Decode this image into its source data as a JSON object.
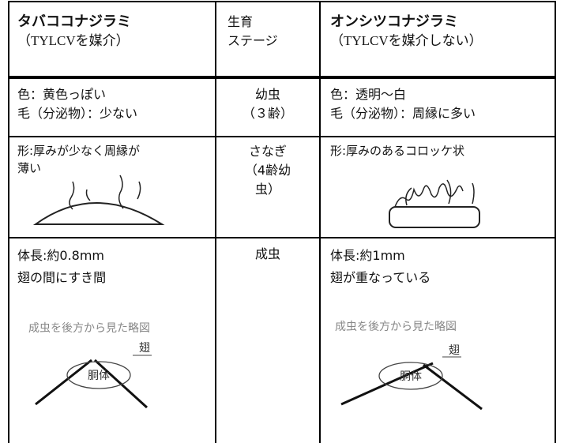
{
  "header": {
    "left": {
      "title": "タバココナジラミ",
      "subtitle": "（TYLCVを媒介）"
    },
    "stage": [
      "生育",
      "ステージ"
    ],
    "right": {
      "title": "オンシツコナジラミ",
      "subtitle": "（TYLCVを媒介しない）"
    }
  },
  "rows": [
    {
      "left": [
        "色：黄色っぽい",
        "毛（分泌物）：少ない"
      ],
      "stage": [
        "幼虫",
        "（３齢）"
      ],
      "right": [
        "色：透明～白",
        "毛（分泌物）：周縁に多い"
      ]
    },
    {
      "left": [
        "形:厚みが少なく周縁が",
        "薄い"
      ],
      "stage": [
        "さなぎ",
        "（4齢幼",
        "虫）"
      ],
      "right": [
        "形:厚みのあるコロッケ状"
      ]
    },
    {
      "left": [
        "体長:約0.8mm",
        "翅の間にすき間"
      ],
      "stage": [
        "成虫"
      ],
      "right": [
        "体長:約1mm",
        "翅が重なっている"
      ],
      "left_figure": {
        "caption": "成虫を後方から見た略図",
        "wing": "翅",
        "body": "胴体"
      },
      "right_figure": {
        "caption": "成虫を後方から見た略図",
        "wing": "翅",
        "body": "胴体"
      }
    }
  ]
}
